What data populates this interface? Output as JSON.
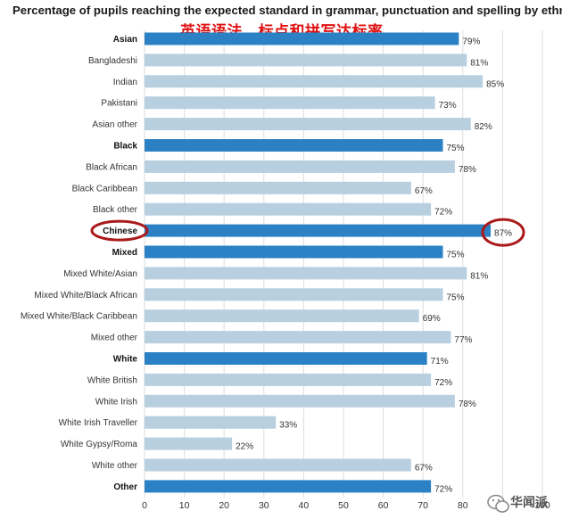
{
  "chart_data": {
    "type": "bar",
    "orientation": "horizontal",
    "title": "Percentage of pupils reaching the expected standard in grammar, punctuation and spelling by ethnicity",
    "subtitle": "英语语法、标点和拼写达标率",
    "xlim": [
      0,
      100
    ],
    "xticks": [
      "0",
      "10",
      "20",
      "30",
      "40",
      "50",
      "60",
      "70",
      "80",
      "90",
      "100"
    ],
    "grid": "vertical",
    "colors": {
      "group": "#2b81c3",
      "subgroup": "#b7cfdf",
      "highlight": "#aa1a1a",
      "grid": "#dddddd"
    },
    "highlighted_category": "Chinese",
    "categories": [
      "Asian",
      "Bangladeshi",
      "Indian",
      "Pakistani",
      "Asian other",
      "Black",
      "Black African",
      "Black Caribbean",
      "Black other",
      "Chinese",
      "Mixed",
      "Mixed White/Asian",
      "Mixed White/Black African",
      "Mixed White/Black Caribbean",
      "Mixed other",
      "White",
      "White British",
      "White Irish",
      "White Irish Traveller",
      "White Gypsy/Roma",
      "White other",
      "Other"
    ],
    "values": [
      79,
      81,
      85,
      73,
      82,
      75,
      78,
      67,
      72,
      87,
      75,
      81,
      75,
      69,
      77,
      71,
      72,
      78,
      33,
      22,
      67,
      72
    ],
    "value_labels": [
      "79%",
      "81%",
      "85%",
      "73%",
      "82%",
      "75%",
      "78%",
      "67%",
      "72%",
      "87%",
      "75%",
      "81%",
      "75%",
      "69%",
      "77%",
      "71%",
      "72%",
      "78%",
      "33%",
      "22%",
      "67%",
      "72%"
    ],
    "is_group": [
      true,
      false,
      false,
      false,
      false,
      true,
      false,
      false,
      false,
      true,
      true,
      false,
      false,
      false,
      false,
      true,
      false,
      false,
      false,
      false,
      false,
      true
    ]
  },
  "watermark": {
    "text": "华闻派",
    "icon": "wechat-icon"
  }
}
